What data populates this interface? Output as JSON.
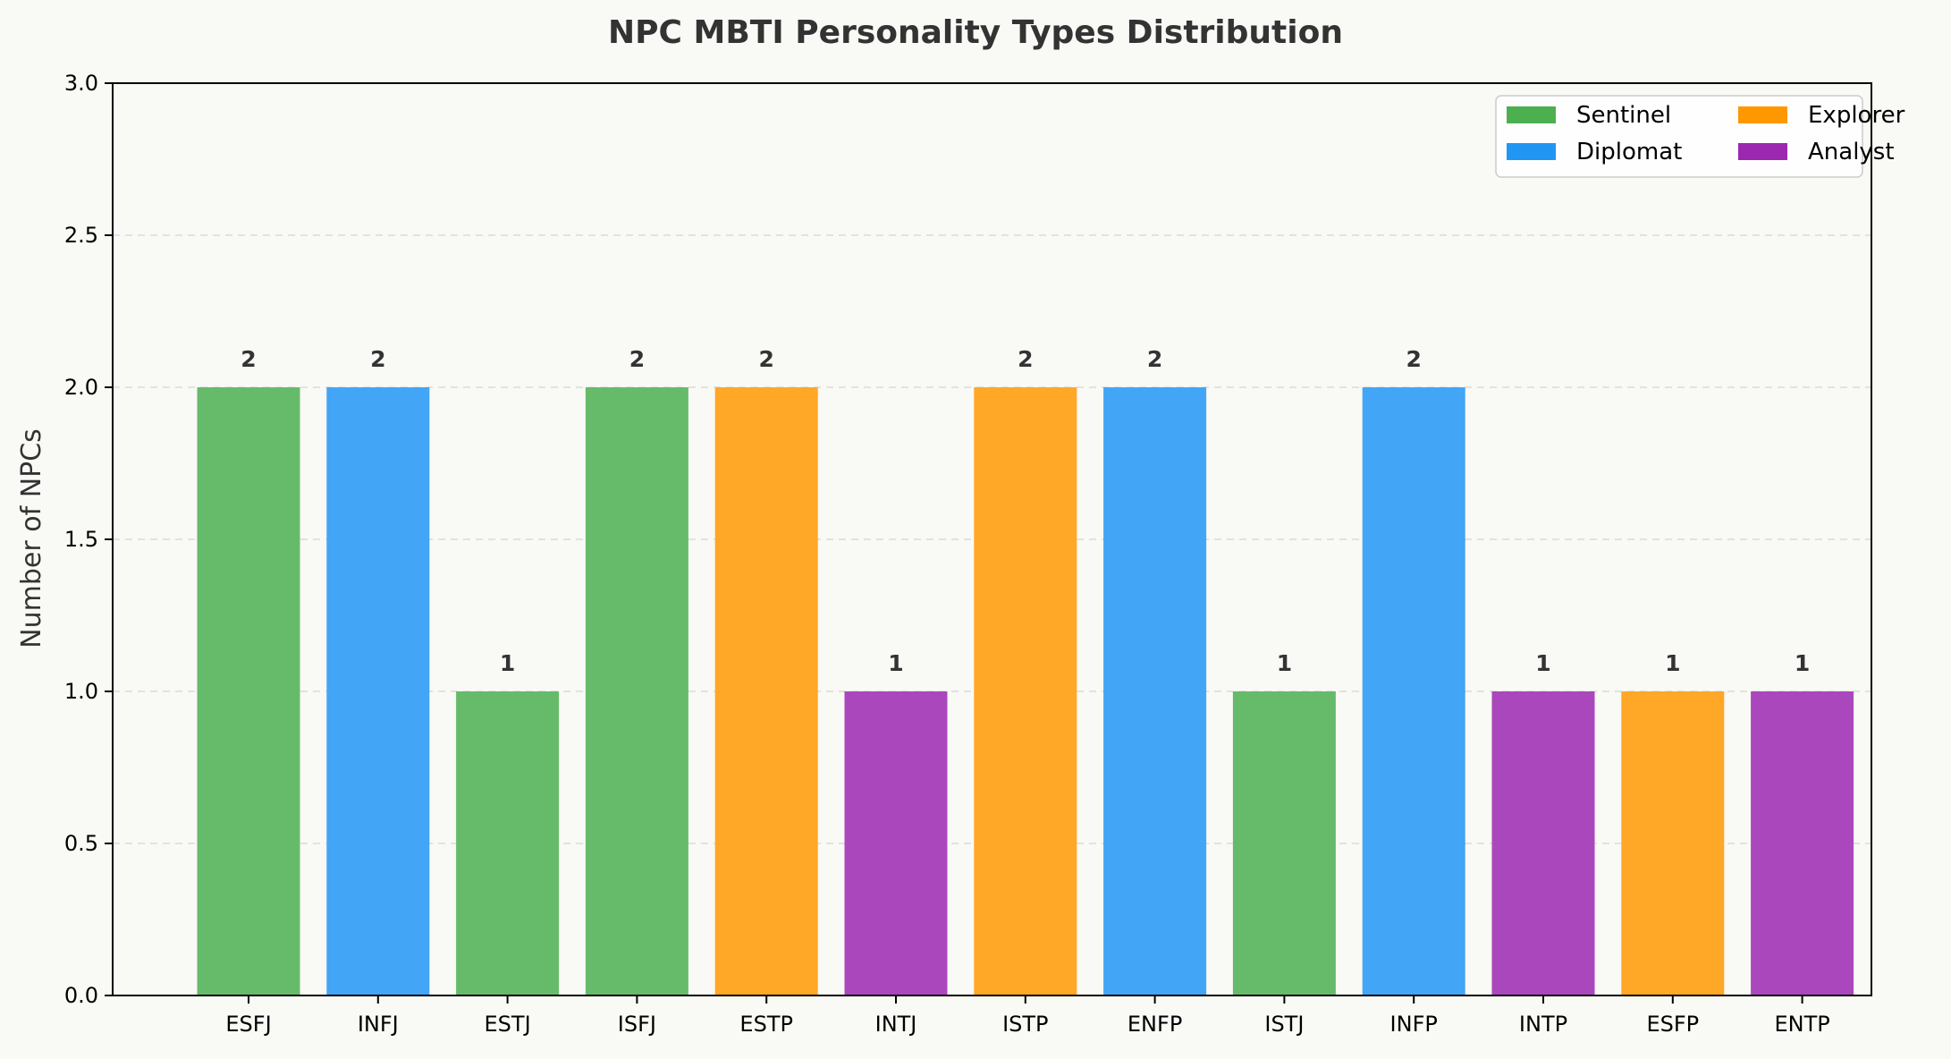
{
  "chart_data": {
    "type": "bar",
    "title": "NPC MBTI Personality Types Distribution",
    "xlabel": "",
    "ylabel": "Number of NPCs",
    "ylim": [
      0,
      3.0
    ],
    "yticks": [
      "0.0",
      "0.5",
      "1.0",
      "1.5",
      "2.0",
      "2.5",
      "3.0"
    ],
    "categories": [
      "ESFJ",
      "INFJ",
      "ESTJ",
      "ISFJ",
      "ESTP",
      "INTJ",
      "ISTP",
      "ENFP",
      "ISTJ",
      "INFP",
      "INTP",
      "ESFP",
      "ENTP"
    ],
    "values": [
      2,
      2,
      1,
      2,
      2,
      1,
      2,
      2,
      1,
      2,
      1,
      1,
      1
    ],
    "groups": [
      "Sentinel",
      "Diplomat",
      "Sentinel",
      "Sentinel",
      "Explorer",
      "Analyst",
      "Explorer",
      "Diplomat",
      "Sentinel",
      "Diplomat",
      "Analyst",
      "Explorer",
      "Analyst"
    ],
    "legend": {
      "placement": "top-right",
      "entries": [
        "Sentinel",
        "Diplomat",
        "Explorer",
        "Analyst"
      ]
    },
    "group_colors": {
      "Sentinel": "#66bb6a",
      "Diplomat": "#42a5f5",
      "Explorer": "#ffa726",
      "Analyst": "#ab47bc"
    },
    "legend_colors": {
      "Sentinel": "#4caf50",
      "Diplomat": "#2196f3",
      "Explorer": "#ff9800",
      "Analyst": "#9c27b0"
    },
    "grid": "y-dashed"
  }
}
